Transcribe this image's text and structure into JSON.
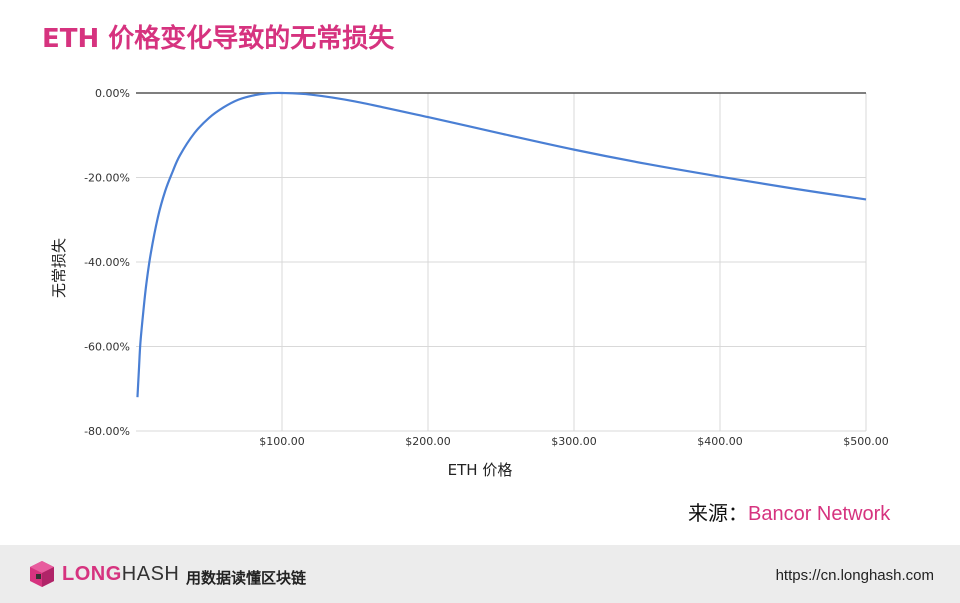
{
  "title": "ETH 价格变化导致的无常损失",
  "source": {
    "label": "来源：",
    "name": "Bancor Network"
  },
  "footer": {
    "brand_long": "LONG",
    "brand_hash": "HASH",
    "tagline": "用数据读懂区块链",
    "url": "https://cn.longhash.com"
  },
  "colors": {
    "accent": "#d6337f",
    "line": "#4a7fd4",
    "grid": "#d9d9d9"
  },
  "chart_data": {
    "type": "line",
    "title": "",
    "xlabel": "ETH 价格",
    "ylabel": "无常损失",
    "xlim": [
      0,
      500
    ],
    "ylim": [
      -80,
      0
    ],
    "x_ticks": [
      100,
      200,
      300,
      400,
      500
    ],
    "x_tick_labels": [
      "$100.00",
      "$200.00",
      "$300.00",
      "$400.00",
      "$500.00"
    ],
    "y_ticks": [
      0,
      -20,
      -40,
      -60,
      -80
    ],
    "y_tick_labels": [
      "0.00%",
      "-20.00%",
      "-40.00%",
      "-60.00%",
      "-80.00%"
    ],
    "grid": true,
    "series": [
      {
        "x": [
          1,
          2,
          3,
          5,
          7,
          10,
          15,
          20,
          25,
          30,
          40,
          50,
          60,
          70,
          80,
          90,
          100,
          120,
          150,
          200,
          250,
          300,
          350,
          400,
          450,
          500
        ],
        "y": [
          -72,
          -65.5,
          -59.2,
          -51.8,
          -45.4,
          -38.2,
          -29.4,
          -23.2,
          -18.7,
          -14.8,
          -9.5,
          -5.9,
          -3.4,
          -1.6,
          -0.6,
          -0.1,
          0,
          -0.4,
          -2.0,
          -5.7,
          -9.6,
          -13.4,
          -16.8,
          -19.8,
          -22.6,
          -25.2
        ]
      }
    ]
  }
}
